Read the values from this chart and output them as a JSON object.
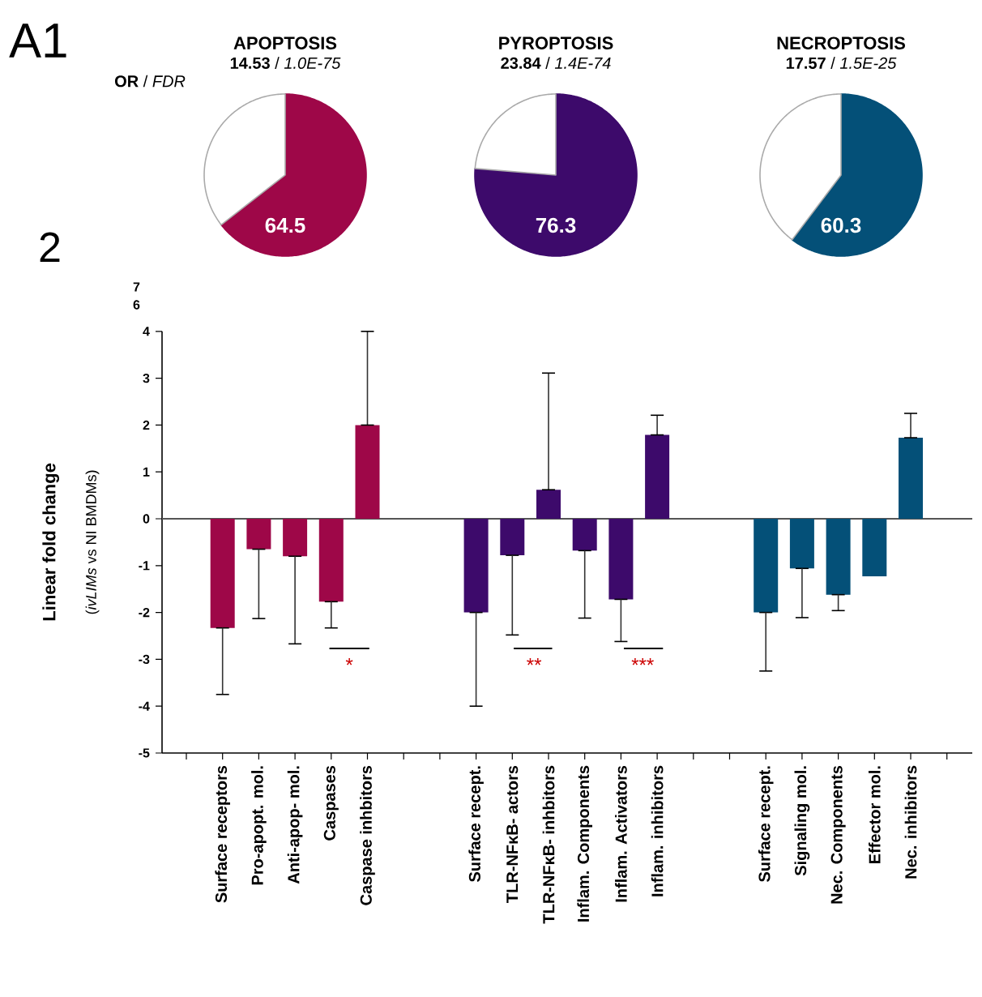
{
  "chart_data": [
    {
      "type": "pie",
      "title": "APOPTOSIS",
      "subtitle": "**14.53** / *1.0E-75*",
      "categories": [
        null,
        null
      ],
      "values": [
        64.5,
        35.5
      ],
      "colors": [
        "#9e0748",
        "#ffffff"
      ],
      "value_labels": [
        "64.5",
        null
      ],
      "annotations": [
        "A1",
        "**OR** / *FDR*"
      ]
    },
    {
      "type": "pie",
      "title": "PYROPTOSIS",
      "subtitle": "**23.84** / *1.4E-74*",
      "categories": [
        null,
        null
      ],
      "values": [
        76.3,
        23.7
      ],
      "colors": [
        "#3d0a6b",
        "#ffffff"
      ],
      "value_labels": [
        "76.3",
        null
      ]
    },
    {
      "type": "pie",
      "title": "NECROPTOSIS",
      "subtitle": "**17.57** / *1.5E-25*",
      "categories": [
        null,
        null
      ],
      "values": [
        60.3,
        39.7
      ],
      "colors": [
        "#045078",
        "#ffffff"
      ],
      "value_labels": [
        "60.3",
        null
      ]
    },
    {
      "type": "bar",
      "ylabel": "Linear fold change",
      "categories": [
        null,
        "Surface receptors",
        "Pro-apopt. mol.",
        "Anti-apop- mol.",
        "Caspases",
        "Caspase inhbitors",
        null,
        null,
        "Surface recept.",
        "TLR-NFκB- actors",
        "TLR-NFκB- inhbitors",
        "Inflam. Components",
        "Inflam. Activators",
        "Inflam. inhibitors",
        null,
        null,
        "Surface recept.",
        "Signaling mol.",
        "Nec. Components",
        "Effector mol.",
        "Nec. inhibitors",
        null
      ],
      "values": [
        null,
        -2.33,
        -0.65,
        -0.8,
        -1.77,
        2.0,
        null,
        null,
        -2.0,
        -0.78,
        0.62,
        -0.68,
        -1.72,
        1.79,
        null,
        null,
        -2.0,
        -1.06,
        -1.62,
        -1.23,
        1.73,
        null
      ],
      "colors": [
        null,
        "#9e0748",
        "#9e0748",
        "#9e0748",
        "#9e0748",
        "#9e0748",
        null,
        null,
        "#3d0a6b",
        "#3d0a6b",
        "#3d0a6b",
        "#3d0a6b",
        "#3d0a6b",
        "#3d0a6b",
        null,
        null,
        "#045078",
        "#045078",
        "#045078",
        "#045078",
        "#045078",
        null
      ],
      "errors": [
        null,
        [
          -3.75,
          -2.33
        ],
        [
          -2.13,
          -0.65
        ],
        [
          -2.67,
          -0.8
        ],
        [
          -2.33,
          -1.77
        ],
        [
          2.0,
          4.0
        ],
        null,
        null,
        [
          -4.0,
          -2.0
        ],
        [
          -2.48,
          -0.78
        ],
        [
          0.62,
          3.11
        ],
        [
          -2.12,
          -0.68
        ],
        [
          -2.62,
          -1.72
        ],
        [
          1.79,
          2.21
        ],
        null,
        null,
        [
          -3.25,
          -2.0
        ],
        [
          -2.11,
          -1.06
        ],
        [
          -1.96,
          -1.62
        ],
        null,
        [
          1.73,
          2.25
        ],
        null
      ],
      "ylim": [
        -5,
        4
      ],
      "yticks": [
        -5,
        -4,
        -3,
        -2,
        -1,
        0,
        1,
        2,
        3,
        4
      ],
      "ref_lines": [
        {
          "axis": "y",
          "value": 0,
          "color": "#555555"
        }
      ],
      "annotations": [
        "2",
        "(*ivLIMs* vs NI BMDMs)",
        "*",
        "**",
        "***",
        "7",
        "6"
      ]
    }
  ]
}
